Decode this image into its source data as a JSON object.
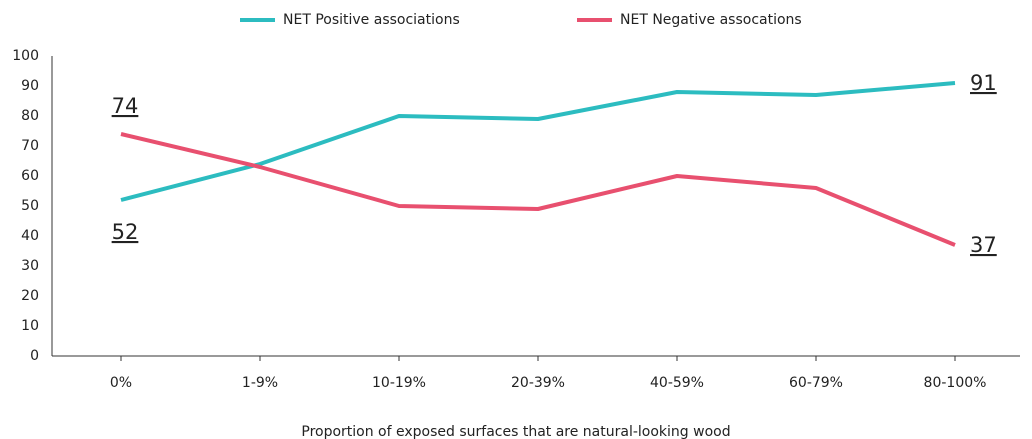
{
  "chart_data": {
    "type": "line",
    "x_label": "Proportion of exposed surfaces that are natural-looking wood",
    "categories": [
      "0%",
      "1-9%",
      "10-19%",
      "20-39%",
      "40-59%",
      "60-79%",
      "80-100%"
    ],
    "series": [
      {
        "name": "NET Positive associations",
        "color": "#2cbcc0",
        "values": [
          52,
          64,
          80,
          79,
          88,
          87,
          91
        ]
      },
      {
        "name": "NET Negative assocations",
        "color": "#e8506f",
        "values": [
          74,
          63,
          50,
          49,
          60,
          56,
          37
        ]
      }
    ],
    "ylim": [
      0,
      100
    ],
    "yticks": [
      0,
      10,
      20,
      30,
      40,
      50,
      60,
      70,
      80,
      90,
      100
    ],
    "legend": "top"
  }
}
